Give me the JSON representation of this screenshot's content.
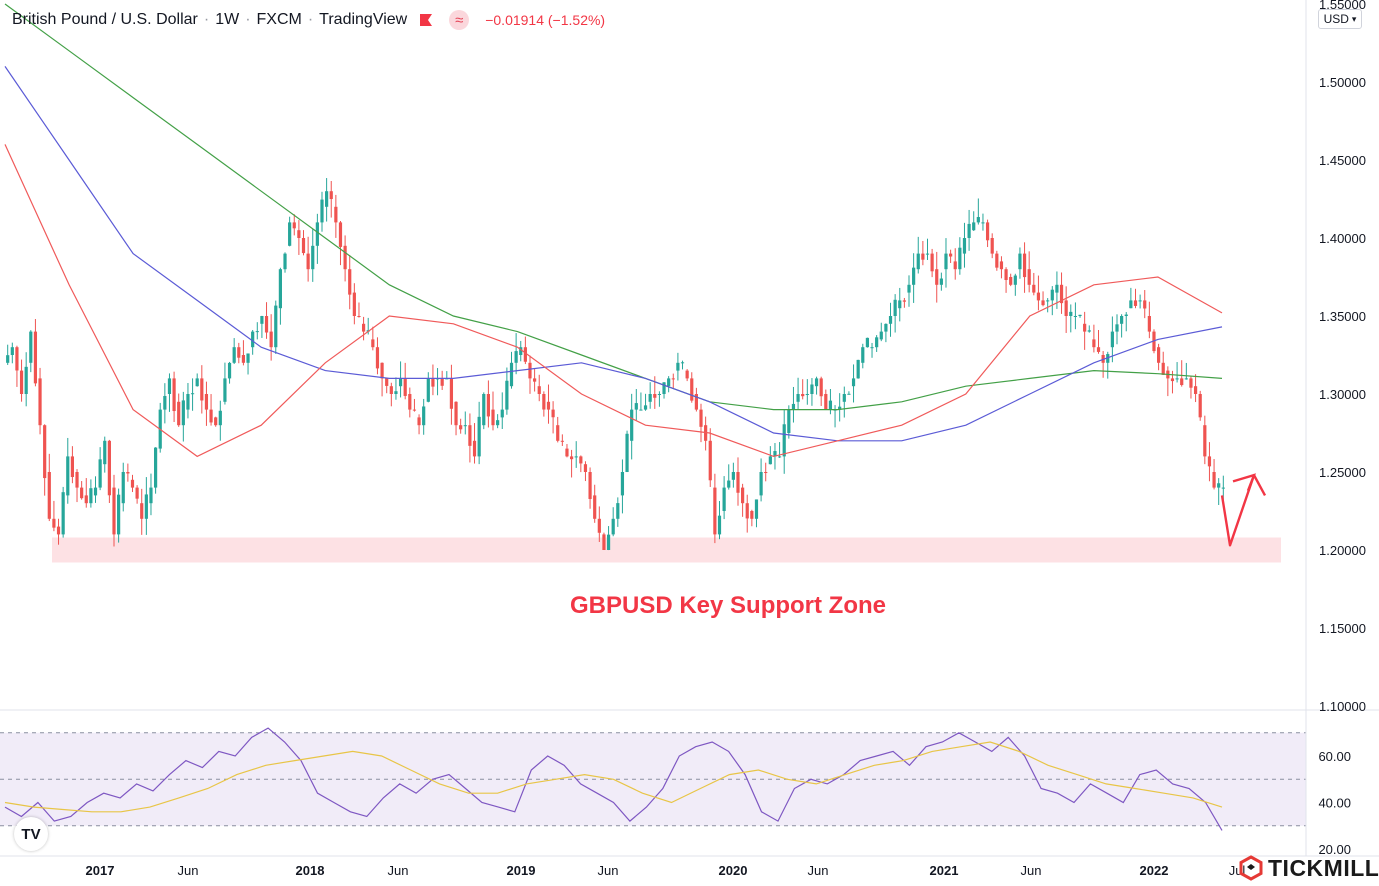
{
  "header": {
    "symbol": "British Pound / U.S. Dollar",
    "interval": "1W",
    "broker": "FXCM",
    "source": "TradingView",
    "change": "−0.01914 (−1.52%)",
    "change_color": "#f23645"
  },
  "currency_selector": {
    "label": "USD"
  },
  "watermark": {
    "brand": "TICKMILL",
    "icon": "tickmill-logo-icon"
  },
  "tv_logo": {
    "icon": "tradingview-logo-icon",
    "text": "TV"
  },
  "chart_data": [
    {
      "type": "candlestick",
      "title": "",
      "annotation": "GBPUSD Key Support Zone",
      "annotation_color": "#f23645",
      "ylim": [
        1.1,
        1.55
      ],
      "y_ticks": [
        "1.10000",
        "1.15000",
        "1.20000",
        "1.25000",
        "1.30000",
        "1.35000",
        "1.40000",
        "1.45000",
        "1.50000",
        "1.55000"
      ],
      "x_ticks": [
        "2017",
        "Jun",
        "2018",
        "Jun",
        "2019",
        "Jun",
        "2020",
        "Jun",
        "2021",
        "Jun",
        "2022",
        "Jul"
      ],
      "support_zone": {
        "from": 1.192,
        "to": 1.208,
        "color": "#fde1e4"
      },
      "projection_arrow": {
        "points": [
          1.235,
          1.203,
          1.248,
          1.235
        ],
        "color": "#f23645"
      },
      "price_path": [
        1.33,
        1.3,
        1.34,
        1.28,
        1.22,
        1.21,
        1.26,
        1.24,
        1.23,
        1.24,
        1.27,
        1.21,
        1.25,
        1.24,
        1.22,
        1.24,
        1.29,
        1.31,
        1.28,
        1.3,
        1.31,
        1.29,
        1.28,
        1.31,
        1.33,
        1.32,
        1.34,
        1.35,
        1.33,
        1.38,
        1.41,
        1.4,
        1.38,
        1.41,
        1.43,
        1.41,
        1.38,
        1.35,
        1.34,
        1.33,
        1.31,
        1.3,
        1.31,
        1.29,
        1.28,
        1.31,
        1.31,
        1.31,
        1.28,
        1.28,
        1.26,
        1.3,
        1.28,
        1.29,
        1.32,
        1.33,
        1.31,
        1.3,
        1.29,
        1.27,
        1.26,
        1.26,
        1.25,
        1.22,
        1.2,
        1.22,
        1.25,
        1.29,
        1.29,
        1.3,
        1.3,
        1.31,
        1.32,
        1.31,
        1.29,
        1.27,
        1.21,
        1.24,
        1.25,
        1.23,
        1.22,
        1.25,
        1.26,
        1.26,
        1.29,
        1.3,
        1.3,
        1.31,
        1.29,
        1.29,
        1.3,
        1.31,
        1.33,
        1.33,
        1.34,
        1.35,
        1.36,
        1.37,
        1.39,
        1.39,
        1.37,
        1.39,
        1.38,
        1.4,
        1.41,
        1.41,
        1.39,
        1.38,
        1.37,
        1.39,
        1.37,
        1.36,
        1.36,
        1.37,
        1.35,
        1.35,
        1.34,
        1.33,
        1.32,
        1.34,
        1.35,
        1.36,
        1.36,
        1.34,
        1.32,
        1.31,
        1.31,
        1.31,
        1.3,
        1.26,
        1.24,
        1.24
      ],
      "series": [
        {
          "name": "",
          "color": "#43a047",
          "values": [
            1.55,
            1.52,
            1.49,
            1.46,
            1.43,
            1.4,
            1.37,
            1.35,
            1.34,
            1.325,
            1.31,
            1.295,
            1.29,
            1.29,
            1.295,
            1.305,
            1.31,
            1.315,
            1.313,
            1.31
          ]
        },
        {
          "name": "",
          "color": "#5b5bd6",
          "values": [
            1.51,
            1.45,
            1.39,
            1.36,
            1.33,
            1.315,
            1.31,
            1.31,
            1.315,
            1.32,
            1.31,
            1.295,
            1.275,
            1.27,
            1.27,
            1.28,
            1.3,
            1.32,
            1.335,
            1.343
          ]
        },
        {
          "name": "",
          "color": "#f05a5a",
          "values": [
            1.46,
            1.37,
            1.29,
            1.26,
            1.28,
            1.32,
            1.35,
            1.345,
            1.33,
            1.3,
            1.28,
            1.275,
            1.26,
            1.27,
            1.28,
            1.3,
            1.35,
            1.37,
            1.375,
            1.352
          ]
        }
      ]
    },
    {
      "type": "line",
      "title": "",
      "ylim": [
        20,
        80
      ],
      "y_ticks": [
        "20.00",
        "40.00",
        "60.00"
      ],
      "bands": [
        30,
        50,
        70
      ],
      "x_ticks": [
        "2017",
        "Jun",
        "2018",
        "Jun",
        "2019",
        "Jun",
        "2020",
        "Jun",
        "2021",
        "Jun",
        "2022",
        "Jul"
      ],
      "series": [
        {
          "name": "",
          "color": "#7e57c2",
          "values": [
            38,
            34,
            40,
            32,
            34,
            40,
            44,
            42,
            48,
            45,
            52,
            58,
            55,
            62,
            60,
            68,
            72,
            66,
            58,
            44,
            40,
            36,
            34,
            42,
            48,
            44,
            50,
            52,
            46,
            40,
            38,
            36,
            54,
            60,
            56,
            48,
            44,
            40,
            32,
            38,
            46,
            60,
            64,
            66,
            62,
            52,
            36,
            32,
            46,
            50,
            48,
            52,
            58,
            60,
            62,
            56,
            64,
            66,
            70,
            66,
            62,
            68,
            60,
            46,
            44,
            40,
            48,
            44,
            40,
            52,
            54,
            48,
            46,
            40,
            28
          ]
        },
        {
          "name": "",
          "color": "#e8c547",
          "values": [
            40,
            38,
            37,
            36,
            36,
            38,
            42,
            46,
            52,
            56,
            58,
            60,
            62,
            60,
            54,
            48,
            44,
            44,
            48,
            50,
            52,
            50,
            44,
            40,
            46,
            52,
            54,
            50,
            48,
            52,
            56,
            58,
            62,
            64,
            66,
            62,
            56,
            52,
            48,
            46,
            44,
            42,
            38
          ]
        }
      ]
    }
  ]
}
